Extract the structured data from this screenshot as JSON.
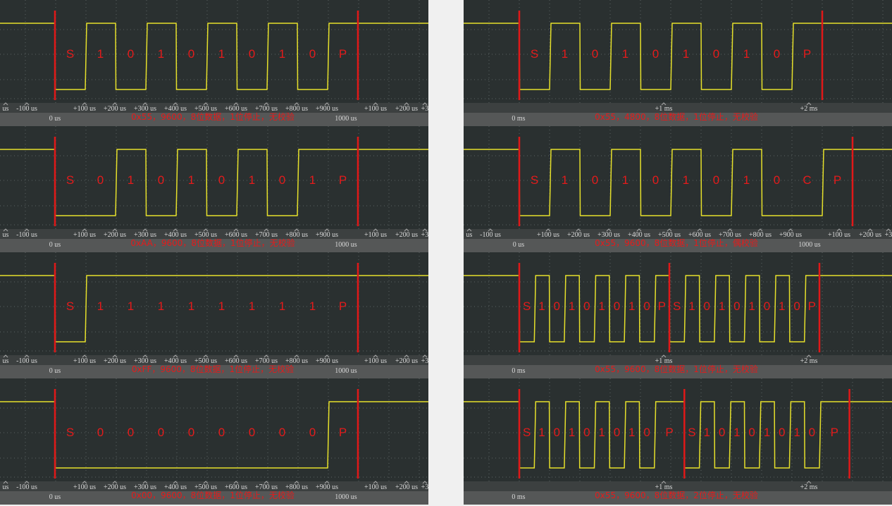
{
  "panels": [
    {
      "frames": [
        [
          "S",
          "1",
          "0",
          "1",
          "0",
          "1",
          "0",
          "1",
          "0",
          "P"
        ]
      ],
      "caption": "0x55，9600，8位数据，1位停止，无校验",
      "ticks_top": [
        "us",
        "-100 us",
        "+100 us",
        "+200 us",
        "+300 us",
        "+400 us",
        "+500 us",
        "+600 us",
        "+700 us",
        "+800 us",
        "+900 us",
        "+100 us",
        "+200 us",
        "+3"
      ],
      "ticks_bottom": [
        "0 us",
        "1000 us"
      ]
    },
    {
      "frames": [
        [
          "S",
          "0",
          "1",
          "0",
          "1",
          "0",
          "1",
          "0",
          "1",
          "P"
        ]
      ],
      "caption": "0xAA，9600，8位数据，1位停止，无校验",
      "ticks_top": [
        "us",
        "-100 us",
        "+100 us",
        "+200 us",
        "+300 us",
        "+400 us",
        "+500 us",
        "+600 us",
        "+700 us",
        "+800 us",
        "+900 us",
        "+100 us",
        "+200 us",
        "+3"
      ],
      "ticks_bottom": [
        "0 us",
        "1000 us"
      ]
    },
    {
      "frames": [
        [
          "S",
          "1",
          "1",
          "1",
          "1",
          "1",
          "1",
          "1",
          "1",
          "P"
        ]
      ],
      "caption": "0xFF，9600，8位数据，1位停止，无校验",
      "ticks_top": [
        "us",
        "-100 us",
        "+100 us",
        "+200 us",
        "+300 us",
        "+400 us",
        "+500 us",
        "+600 us",
        "+700 us",
        "+800 us",
        "+900 us",
        "+100 us",
        "+200 us",
        "+3"
      ],
      "ticks_bottom": [
        "0 us",
        "1000 us"
      ]
    },
    {
      "frames": [
        [
          "S",
          "0",
          "0",
          "0",
          "0",
          "0",
          "0",
          "0",
          "0",
          "P"
        ]
      ],
      "caption": "0x00，9600，8位数据，1位停止，无校验",
      "ticks_top": [
        "us",
        "-100 us",
        "+100 us",
        "+200 us",
        "+300 us",
        "+400 us",
        "+500 us",
        "+600 us",
        "+700 us",
        "+800 us",
        "+900 us",
        "+100 us",
        "+200 us",
        "+3"
      ],
      "ticks_bottom": [
        "0 us",
        "1000 us"
      ]
    },
    {
      "frames": [
        [
          "S",
          "1",
          "0",
          "1",
          "0",
          "1",
          "0",
          "1",
          "0",
          "P"
        ]
      ],
      "caption": "0x55，4800，8位数据，1位停止，无校验",
      "ticks_top": [
        "+1 ms",
        "+2 ms"
      ],
      "ticks_bottom": [
        "0 ms"
      ]
    },
    {
      "frames": [
        [
          "S",
          "1",
          "0",
          "1",
          "0",
          "1",
          "0",
          "1",
          "0",
          "C",
          "P"
        ]
      ],
      "caption": "0x55，9600，8位数据，1位停止，偶校验",
      "ticks_top": [
        "us",
        "-100 us",
        "+100 us",
        "+200 us",
        "+300 us",
        "+400 us",
        "+500 us",
        "+600 us",
        "+700 us",
        "+800 us",
        "+900 us",
        "+100 us",
        "+200 us",
        "+3"
      ],
      "ticks_bottom": [
        "0 us",
        "1000 us"
      ]
    },
    {
      "frames": [
        [
          "S",
          "1",
          "0",
          "1",
          "0",
          "1",
          "0",
          "1",
          "0",
          "P"
        ],
        [
          "S",
          "1",
          "0",
          "1",
          "0",
          "1",
          "0",
          "1",
          "0",
          "P"
        ]
      ],
      "caption": "0x55，9600，8位数据，1位停止，无校验",
      "ticks_top": [
        "+1 ms",
        "+2 ms"
      ],
      "ticks_bottom": [
        "0 ms"
      ]
    },
    {
      "frames": [
        [
          "S",
          "1",
          "0",
          "1",
          "0",
          "1",
          "0",
          "1",
          "0",
          "P"
        ],
        [
          "S",
          "1",
          "0",
          "1",
          "0",
          "1",
          "0",
          "1",
          "0",
          "P"
        ]
      ],
      "caption": "0x55，9600，8位数据，2位停止，无校验",
      "ticks_top": [
        "+1 ms",
        "+2 ms"
      ],
      "ticks_bottom": [
        "0 ms"
      ]
    }
  ]
}
